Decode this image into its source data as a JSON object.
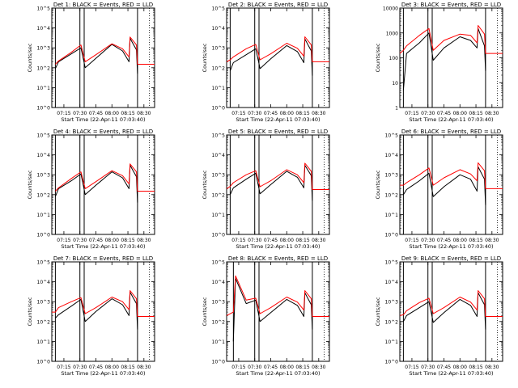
{
  "figure": {
    "background": "#ffffff",
    "colors": {
      "events": "#000000",
      "lld": "#ff0000",
      "axes": "#000000"
    }
  },
  "chart_data": [
    {
      "type": "line",
      "title": "Det 1: BLACK = Events, RED = LLD",
      "xlabel": "Start Time (22-Apr-11 07:03:40)",
      "ylabel": "Counts/sec",
      "yscale": "log",
      "ylim": [
        1,
        100000
      ],
      "ytick_labels": [
        "10^0",
        "10^1",
        "10^2",
        "10^3",
        "10^4",
        "10^5"
      ],
      "xlim": [
        "07:03:40",
        "08:40:00"
      ],
      "xtick_labels": [
        "07:15",
        "07:30",
        "07:45",
        "08:00",
        "08:15",
        "08:30"
      ],
      "vertical_lines": [
        "07:07",
        "07:30",
        "07:34",
        "08:24"
      ],
      "dotted_line": "08:35",
      "series": [
        {
          "name": "Events",
          "color": "#000000",
          "x": [
            "07:07",
            "07:10",
            "07:22",
            "07:31",
            "07:35",
            "07:45",
            "08:00",
            "08:10",
            "08:16",
            "08:17",
            "08:23",
            "08:24"
          ],
          "values": [
            90,
            200,
            500,
            1000,
            100,
            300,
            1500,
            700,
            200,
            3000,
            800,
            50
          ]
        },
        {
          "name": "LLD",
          "color": "#ff0000",
          "x": [
            "07:07",
            "07:10",
            "07:22",
            "07:31",
            "07:35",
            "07:45",
            "08:00",
            "08:10",
            "08:16",
            "08:17",
            "08:23",
            "08:24",
            "08:40"
          ],
          "values": [
            150,
            220,
            600,
            1400,
            200,
            450,
            1600,
            900,
            350,
            3500,
            1400,
            150,
            150
          ]
        }
      ]
    },
    {
      "type": "line",
      "title": "Det 2: BLACK = Events, RED = LLD",
      "xlabel": "Start Time (22-Apr-11 07:03:40)",
      "ylabel": "Counts/sec",
      "yscale": "log",
      "ylim": [
        1,
        100000
      ],
      "ytick_labels": [
        "10^0",
        "10^1",
        "10^2",
        "10^3",
        "10^4",
        "10^5"
      ],
      "xlim": [
        "07:03:40",
        "08:40:00"
      ],
      "xtick_labels": [
        "07:15",
        "07:30",
        "07:45",
        "08:00",
        "08:15",
        "08:30"
      ],
      "vertical_lines": [
        "07:07",
        "07:30",
        "07:34",
        "08:24"
      ],
      "dotted_line": "08:35",
      "series": [
        {
          "name": "Events",
          "color": "#000000",
          "x": [
            "07:07",
            "07:10",
            "07:22",
            "07:31",
            "07:35",
            "07:45",
            "08:00",
            "08:10",
            "08:16",
            "08:17",
            "08:23",
            "08:24"
          ],
          "values": [
            70,
            180,
            450,
            900,
            90,
            280,
            1300,
            650,
            180,
            2800,
            700,
            40
          ]
        },
        {
          "name": "LLD",
          "color": "#ff0000",
          "x": [
            "07:03:40",
            "07:07",
            "07:10",
            "07:22",
            "07:31",
            "07:35",
            "07:45",
            "08:00",
            "08:10",
            "08:16",
            "08:17",
            "08:23",
            "08:24",
            "08:40"
          ],
          "values": [
            200,
            250,
            350,
            900,
            1500,
            250,
            500,
            1700,
            950,
            380,
            3600,
            1400,
            200,
            200
          ]
        }
      ]
    },
    {
      "type": "line",
      "title": "Det 3: BLACK = Events, RED = LLD",
      "xlabel": "Start Time (22-Apr-11 07:03:40)",
      "ylabel": "Counts/sec",
      "yscale": "log",
      "ylim": [
        1,
        10000
      ],
      "ytick_labels": [
        "1",
        "10",
        "100",
        "1000",
        "10000"
      ],
      "xlim": [
        "07:03:40",
        "08:40:00"
      ],
      "xtick_labels": [
        "07:15",
        "07:30",
        "07:45",
        "08:00",
        "08:15",
        "08:30"
      ],
      "vertical_lines": [
        "07:07",
        "07:30",
        "07:34",
        "08:24"
      ],
      "dotted_line": "08:35",
      "series": [
        {
          "name": "Events",
          "color": "#000000",
          "x": [
            "07:07",
            "07:10",
            "07:22",
            "07:31",
            "07:35",
            "07:45",
            "08:00",
            "08:10",
            "08:16",
            "08:17",
            "08:23",
            "08:24"
          ],
          "values": [
            5,
            150,
            400,
            1000,
            80,
            250,
            700,
            500,
            250,
            1500,
            300,
            30
          ]
        },
        {
          "name": "LLD",
          "color": "#ff0000",
          "x": [
            "07:03:40",
            "07:07",
            "07:10",
            "07:22",
            "07:31",
            "07:35",
            "07:45",
            "08:00",
            "08:10",
            "08:16",
            "08:17",
            "08:23",
            "08:24",
            "08:40"
          ],
          "values": [
            150,
            200,
            300,
            800,
            1500,
            200,
            500,
            900,
            800,
            400,
            2000,
            900,
            150,
            150
          ]
        }
      ]
    },
    {
      "type": "line",
      "title": "Det 4: BLACK = Events, RED = LLD",
      "xlabel": "Start Time (22-Apr-11 07:03:40)",
      "ylabel": "Counts/sec",
      "yscale": "log",
      "ylim": [
        1,
        100000
      ],
      "ytick_labels": [
        "10^0",
        "10^1",
        "10^2",
        "10^3",
        "10^4",
        "10^5"
      ],
      "xlim": [
        "07:03:40",
        "08:40:00"
      ],
      "xtick_labels": [
        "07:15",
        "07:30",
        "07:45",
        "08:00",
        "08:15",
        "08:30"
      ],
      "vertical_lines": [
        "07:07",
        "07:30",
        "07:34",
        "08:24"
      ],
      "dotted_line": "08:35",
      "series": [
        {
          "name": "Events",
          "color": "#000000",
          "x": [
            "07:07",
            "07:10",
            "07:22",
            "07:31",
            "07:35",
            "07:45",
            "08:00",
            "08:10",
            "08:16",
            "08:17",
            "08:23",
            "08:24"
          ],
          "values": [
            80,
            200,
            500,
            1100,
            100,
            300,
            1400,
            700,
            200,
            3000,
            800,
            40
          ]
        },
        {
          "name": "LLD",
          "color": "#ff0000",
          "x": [
            "07:07",
            "07:10",
            "07:22",
            "07:31",
            "07:35",
            "07:45",
            "08:00",
            "08:10",
            "08:16",
            "08:17",
            "08:23",
            "08:24",
            "08:40"
          ],
          "values": [
            150,
            220,
            650,
            1400,
            200,
            450,
            1600,
            900,
            350,
            3500,
            1400,
            150,
            150
          ]
        }
      ]
    },
    {
      "type": "line",
      "title": "Det 5: BLACK = Events, RED = LLD",
      "xlabel": "Start Time (22-Apr-11 07:03:40)",
      "ylabel": "Counts/sec",
      "yscale": "log",
      "ylim": [
        1,
        100000
      ],
      "ytick_labels": [
        "10^0",
        "10^1",
        "10^2",
        "10^3",
        "10^4",
        "10^5"
      ],
      "xlim": [
        "07:03:40",
        "08:40:00"
      ],
      "xtick_labels": [
        "07:15",
        "07:30",
        "07:45",
        "08:00",
        "08:15",
        "08:30"
      ],
      "vertical_lines": [
        "07:07",
        "07:30",
        "07:34",
        "08:24"
      ],
      "dotted_line": "08:35",
      "series": [
        {
          "name": "Events",
          "color": "#000000",
          "x": [
            "07:07",
            "07:10",
            "07:22",
            "07:31",
            "07:35",
            "07:45",
            "08:00",
            "08:10",
            "08:16",
            "08:17",
            "08:23",
            "08:24"
          ],
          "values": [
            100,
            220,
            600,
            1200,
            110,
            320,
            1500,
            750,
            220,
            3000,
            900,
            50
          ]
        },
        {
          "name": "LLD",
          "color": "#ff0000",
          "x": [
            "07:03:40",
            "07:07",
            "07:10",
            "07:22",
            "07:31",
            "07:35",
            "07:45",
            "08:00",
            "08:10",
            "08:16",
            "08:17",
            "08:23",
            "08:24",
            "08:40"
          ],
          "values": [
            200,
            260,
            400,
            1000,
            1600,
            250,
            500,
            1800,
            1000,
            400,
            3800,
            1500,
            180,
            180
          ]
        }
      ]
    },
    {
      "type": "line",
      "title": "Det 6: BLACK = Events, RED = LLD",
      "xlabel": "Start Time (22-Apr-11 07:03:40)",
      "ylabel": "Counts/sec",
      "yscale": "log",
      "ylim": [
        1,
        100000
      ],
      "ytick_labels": [
        "10^0",
        "10^1",
        "10^2",
        "10^3",
        "10^4",
        "10^5"
      ],
      "xlim": [
        "07:03:40",
        "08:40:00"
      ],
      "xtick_labels": [
        "07:15",
        "07:30",
        "07:45",
        "08:00",
        "08:15",
        "08:30"
      ],
      "vertical_lines": [
        "07:07",
        "07:30",
        "07:34",
        "08:24"
      ],
      "dotted_line": "08:35",
      "series": [
        {
          "name": "Events",
          "color": "#000000",
          "x": [
            "07:07",
            "07:10",
            "07:22",
            "07:31",
            "07:35",
            "07:45",
            "08:00",
            "08:10",
            "08:16",
            "08:17",
            "08:23",
            "08:24"
          ],
          "values": [
            100,
            180,
            500,
            1200,
            80,
            250,
            1000,
            600,
            150,
            2500,
            600,
            30
          ]
        },
        {
          "name": "LLD",
          "color": "#ff0000",
          "x": [
            "07:03:40",
            "07:07",
            "07:10",
            "07:22",
            "07:31",
            "07:35",
            "07:45",
            "08:00",
            "08:10",
            "08:16",
            "08:17",
            "08:23",
            "08:24",
            "08:40"
          ],
          "values": [
            300,
            300,
            400,
            1000,
            2200,
            300,
            700,
            1800,
            1100,
            500,
            4000,
            1600,
            200,
            200
          ]
        }
      ]
    },
    {
      "type": "line",
      "title": "Det 7: BLACK = Events, RED = LLD",
      "xlabel": "Start Time (22-Apr-11 07:03:40)",
      "ylabel": "Counts/sec",
      "yscale": "log",
      "ylim": [
        1,
        100000
      ],
      "ytick_labels": [
        "10^0",
        "10^1",
        "10^2",
        "10^3",
        "10^4",
        "10^5"
      ],
      "xlim": [
        "07:03:40",
        "08:40:00"
      ],
      "xtick_labels": [
        "07:15",
        "07:30",
        "07:45",
        "08:00",
        "08:15",
        "08:30"
      ],
      "vertical_lines": [
        "07:07",
        "07:30",
        "07:34",
        "08:24"
      ],
      "dotted_line": "08:35",
      "series": [
        {
          "name": "Events",
          "color": "#000000",
          "x": [
            "07:07",
            "07:10",
            "07:22",
            "07:31",
            "07:35",
            "07:45",
            "08:00",
            "08:10",
            "08:16",
            "08:17",
            "08:23",
            "08:24"
          ],
          "values": [
            150,
            220,
            600,
            1300,
            100,
            320,
            1400,
            700,
            200,
            3000,
            800,
            40
          ]
        },
        {
          "name": "LLD",
          "color": "#ff0000",
          "x": [
            "07:03:40",
            "07:07",
            "07:10",
            "07:22",
            "07:31",
            "07:35",
            "07:45",
            "08:00",
            "08:10",
            "08:16",
            "08:17",
            "08:23",
            "08:24",
            "08:40"
          ],
          "values": [
            300,
            300,
            500,
            1000,
            1600,
            250,
            500,
            1700,
            1000,
            400,
            3600,
            1400,
            180,
            180
          ]
        }
      ]
    },
    {
      "type": "line",
      "title": "Det 8: BLACK = Events, RED = LLD",
      "xlabel": "Start Time (22-Apr-11 07:03:40)",
      "ylabel": "Counts/sec",
      "yscale": "log",
      "ylim": [
        1,
        100000
      ],
      "ytick_labels": [
        "10^0",
        "10^1",
        "10^2",
        "10^3",
        "10^4",
        "10^5"
      ],
      "xlim": [
        "07:03:40",
        "08:40:00"
      ],
      "xtick_labels": [
        "07:15",
        "07:30",
        "07:45",
        "08:00",
        "08:15",
        "08:30"
      ],
      "vertical_lines": [
        "07:10",
        "07:30",
        "07:34",
        "08:24"
      ],
      "dotted_line": "08:35",
      "series": [
        {
          "name": "Events",
          "color": "#000000",
          "x": [
            "07:10",
            "07:12",
            "07:22",
            "07:31",
            "07:35",
            "07:45",
            "08:00",
            "08:10",
            "08:16",
            "08:17",
            "08:23",
            "08:24"
          ],
          "values": [
            10,
            15000,
            800,
            1200,
            100,
            280,
            1300,
            650,
            180,
            2800,
            700,
            40
          ]
        },
        {
          "name": "LLD",
          "color": "#ff0000",
          "x": [
            "07:03:40",
            "07:10",
            "07:12",
            "07:22",
            "07:31",
            "07:35",
            "07:45",
            "08:00",
            "08:10",
            "08:16",
            "08:17",
            "08:23",
            "08:24",
            "08:40"
          ],
          "values": [
            200,
            300,
            20000,
            1200,
            1500,
            250,
            500,
            1700,
            950,
            380,
            3600,
            1400,
            180,
            180
          ]
        }
      ]
    },
    {
      "type": "line",
      "title": "Det 9: BLACK = Events, RED = LLD",
      "xlabel": "Start Time (22-Apr-11 07:03:40)",
      "ylabel": "Counts/sec",
      "yscale": "log",
      "ylim": [
        1,
        100000
      ],
      "ytick_labels": [
        "10^0",
        "10^1",
        "10^2",
        "10^3",
        "10^4",
        "10^5"
      ],
      "xlim": [
        "07:03:40",
        "08:40:00"
      ],
      "xtick_labels": [
        "07:15",
        "07:30",
        "07:45",
        "08:00",
        "08:15",
        "08:30"
      ],
      "vertical_lines": [
        "07:07",
        "07:30",
        "07:34",
        "08:24"
      ],
      "dotted_line": "08:35",
      "series": [
        {
          "name": "Events",
          "color": "#000000",
          "x": [
            "07:07",
            "07:10",
            "07:22",
            "07:31",
            "07:35",
            "07:45",
            "08:00",
            "08:10",
            "08:16",
            "08:17",
            "08:23",
            "08:24"
          ],
          "values": [
            100,
            200,
            500,
            1000,
            90,
            280,
            1300,
            650,
            180,
            2800,
            700,
            40
          ]
        },
        {
          "name": "LLD",
          "color": "#ff0000",
          "x": [
            "07:03:40",
            "07:07",
            "07:10",
            "07:22",
            "07:31",
            "07:35",
            "07:45",
            "08:00",
            "08:10",
            "08:16",
            "08:17",
            "08:23",
            "08:24",
            "08:40"
          ],
          "values": [
            200,
            220,
            350,
            900,
            1500,
            250,
            500,
            1700,
            950,
            380,
            3600,
            1400,
            180,
            180
          ]
        }
      ]
    }
  ]
}
